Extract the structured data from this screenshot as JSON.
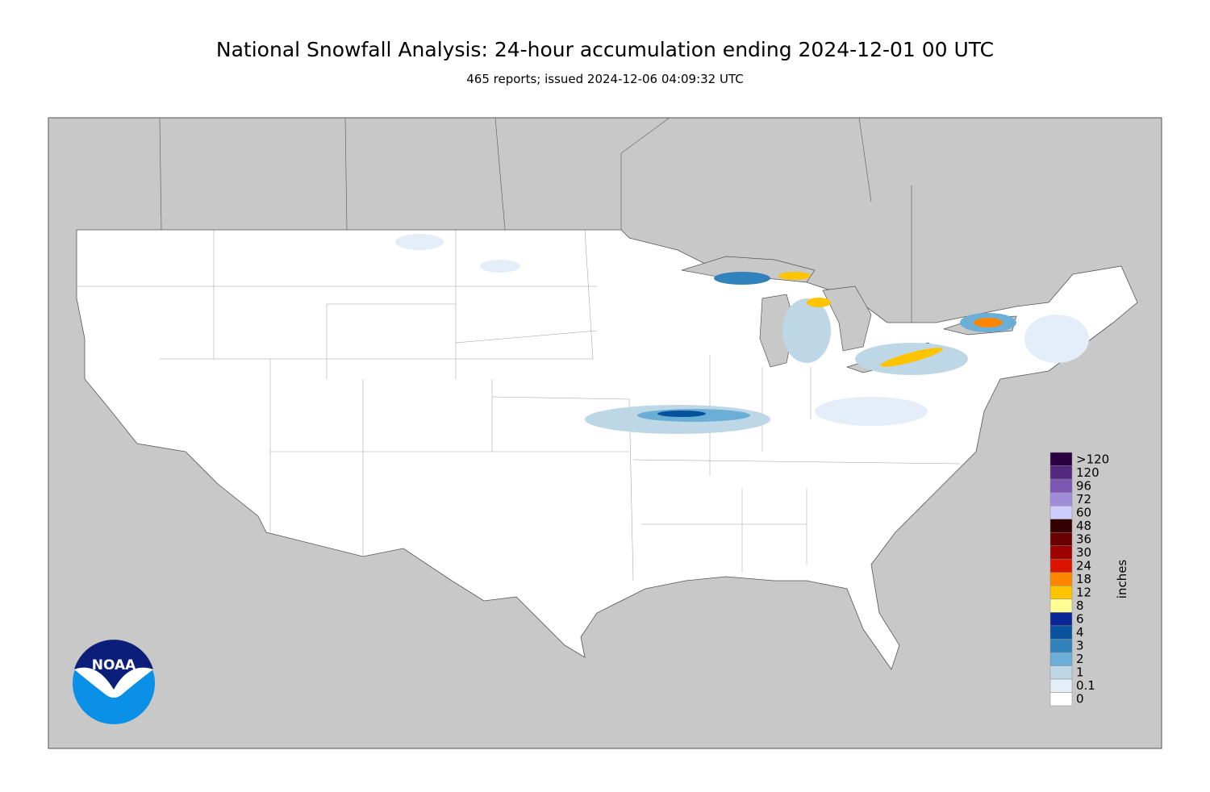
{
  "title": "National Snowfall Analysis: 24-hour accumulation ending 2024-12-01 00 UTC",
  "subtitle": "465 reports; issued 2024-12-06 04:09:32 UTC",
  "logo": "NOAA",
  "legend": {
    "title": "inches",
    "levels": [
      {
        "label": "0",
        "color": "#ffffff"
      },
      {
        "label": "0.1",
        "color": "#e4eef9"
      },
      {
        "label": "1",
        "color": "#bdd7e7"
      },
      {
        "label": "2",
        "color": "#6baed6"
      },
      {
        "label": "3",
        "color": "#3182bd"
      },
      {
        "label": "4",
        "color": "#08519c"
      },
      {
        "label": "6",
        "color": "#082694"
      },
      {
        "label": "8",
        "color": "#ffff96"
      },
      {
        "label": "12",
        "color": "#ffc400"
      },
      {
        "label": "18",
        "color": "#ff8700"
      },
      {
        "label": "24",
        "color": "#db1400"
      },
      {
        "label": "30",
        "color": "#9e0000"
      },
      {
        "label": "36",
        "color": "#690000"
      },
      {
        "label": "48",
        "color": "#360000"
      },
      {
        "label": "60",
        "color": "#ccccff"
      },
      {
        "label": "72",
        "color": "#a08cd8"
      },
      {
        "label": "96",
        "color": "#7e57b5"
      },
      {
        "label": "120",
        "color": "#552a7e"
      },
      {
        "label": ">120",
        "color": "#2b0042"
      }
    ]
  }
}
